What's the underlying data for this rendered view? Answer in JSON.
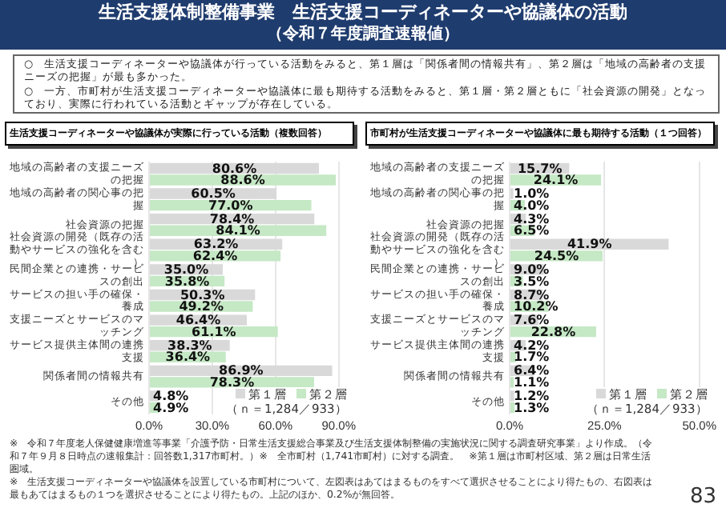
{
  "chart_data": [
    {
      "type": "other",
      "title": "生活支援体制整備事業　生活支援コーディネーターや協議体の活動",
      "subtitle": "（令和７年度調査速報値）",
      "annotations": [
        "○　生活支援コーディネーターや協議体が行っている活動をみると、第１層は「関係者間の情報共有」、第２層は「地域の高齢者の支援ニーズの把握」が最も多かった。",
        "○　一方、市町村が生活支援コーディネーターや協議体に最も期待する活動をみると、第１層・第２層ともに「社会資源の開発」となっており、実際に行われている活動とギャップが存在している。"
      ]
    },
    {
      "type": "bar",
      "orientation": "horizontal",
      "title": "生活支援コーディネーターや協議体が実際に行っている活動（複数回答）",
      "categories": [
        "地域の高齢者の支援ニーズの把握",
        "地域の高齢者の関心事の把握",
        "社会資源の把握",
        "社会資源の開発（既存の活動やサービスの強化を含む）",
        "民間企業との連携・サービスの創出",
        "サービスの担い手の確保・養成",
        "支援ニーズとサービスのマッチング",
        "サービス提供主体間の連携支援",
        "関係者間の情報共有",
        "その他"
      ],
      "series": [
        {
          "name": "第１層",
          "color": "#d9d9d9",
          "values": [
            80.6,
            60.5,
            78.4,
            63.2,
            35.0,
            50.3,
            46.4,
            38.3,
            86.9,
            4.8
          ],
          "value_labels": [
            "80.6%",
            "60.5%",
            "78.4%",
            "63.2%",
            "35.0%",
            "50.3%",
            "46.4%",
            "38.3%",
            "86.9%",
            "4.8%"
          ]
        },
        {
          "name": "第２層",
          "color": "#c5e8c5",
          "values": [
            88.6,
            77.0,
            84.1,
            62.4,
            35.8,
            49.2,
            61.1,
            36.4,
            78.3,
            4.9
          ],
          "value_labels": [
            "88.6%",
            "77.0%",
            "84.1%",
            "62.4%",
            "35.8%",
            "49.2%",
            "61.1%",
            "36.4%",
            "78.3%",
            "4.9%"
          ]
        }
      ],
      "xlim": [
        0,
        90
      ],
      "xticks": [
        {
          "value": 0,
          "label": "0.0%"
        },
        {
          "value": 30,
          "label": "30.0%"
        },
        {
          "value": 60,
          "label": "60.0%"
        },
        {
          "value": 90,
          "label": "90.0%"
        }
      ],
      "grid": "x",
      "legend": "bottom right",
      "annotations": [
        "（ｎ＝1,284／933）"
      ]
    },
    {
      "type": "bar",
      "orientation": "horizontal",
      "title": "市町村が生活支援コーディネーターや協議体に最も期待する活動（１つ回答）",
      "categories": [
        "地域の高齢者の支援ニーズの把握",
        "地域の高齢者の関心事の把握",
        "社会資源の把握",
        "社会資源の開発（既存の活動やサービスの強化を含む）",
        "民間企業との連携・サービスの創出",
        "サービスの担い手の確保・養成",
        "支援ニーズとサービスのマッチング",
        "サービス提供主体間の連携支援",
        "関係者間の情報共有",
        "その他"
      ],
      "series": [
        {
          "name": "第１層",
          "color": "#d9d9d9",
          "values": [
            15.7,
            1.0,
            4.3,
            41.9,
            9.0,
            8.7,
            7.6,
            4.2,
            6.4,
            1.2
          ],
          "value_labels": [
            "15.7%",
            "1.0%",
            "4.3%",
            "41.9%",
            "9.0%",
            "8.7%",
            "7.6%",
            "4.2%",
            "6.4%",
            "1.2%"
          ]
        },
        {
          "name": "第２層",
          "color": "#c5e8c5",
          "values": [
            24.1,
            4.0,
            6.5,
            24.5,
            3.5,
            10.2,
            22.8,
            1.7,
            1.1,
            1.3
          ],
          "value_labels": [
            "24.1%",
            "4.0%",
            "6.5%",
            "24.5%",
            "3.5%",
            "10.2%",
            "22.8%",
            "1.7%",
            "1.1%",
            "1.3%"
          ]
        }
      ],
      "xlim": [
        0,
        50
      ],
      "xticks": [
        {
          "value": 0,
          "label": "0.0%"
        },
        {
          "value": 25,
          "label": "25.0%"
        },
        {
          "value": 50,
          "label": "50.0%"
        }
      ],
      "grid": "x",
      "legend": "bottom right",
      "annotations": [
        "（ｎ＝1,284／933）",
        "※　令和７年度老人保健健康増進等事業「介護予防・日常生活支援総合事業及び生活支援体制整備の実施状況に関する調査研究事業」より作成。（令和７年９月８日時点の速報集計：回答数1,317市町村。）※　全市町村（1,741市町村）に対する調査。　※第１層は市町村区域、第２層は日常生活圏域。",
        "※　生活支援コーディネーターや協議体を設置している市町村について、左図表はあてはまるものをすべて選択させることにより得たもの、右図表は最もあてはまるもの１つを選択させることにより得たもの。上記のほか、0.2%が無回答。",
        "83"
      ]
    }
  ]
}
